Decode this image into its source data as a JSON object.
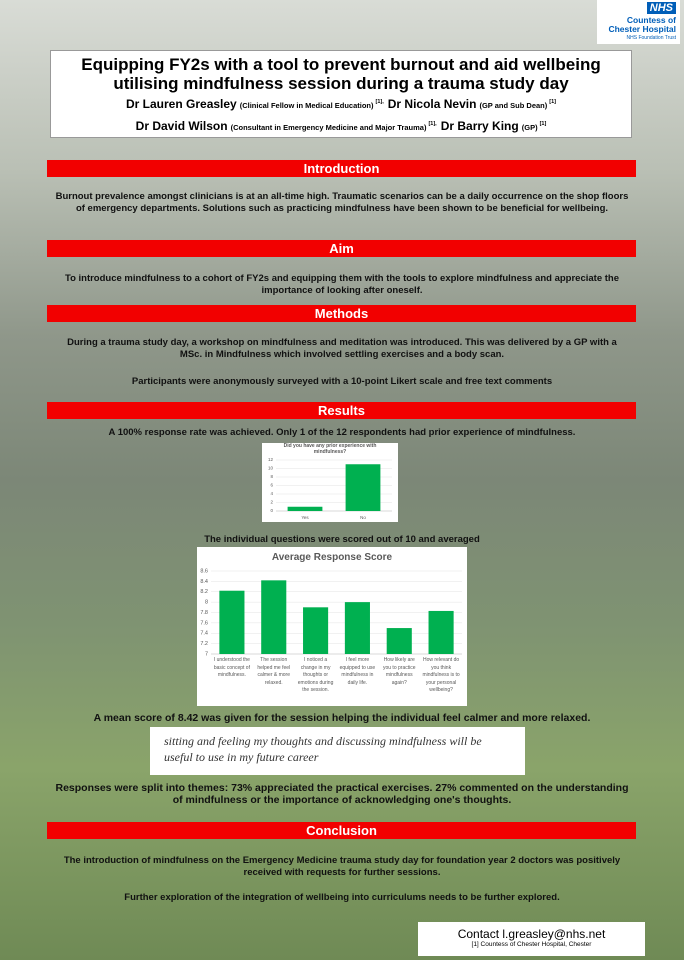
{
  "logo": {
    "mark": "NHS",
    "org": "Countess of Chester Hospital",
    "org_sub": "NHS Foundation Trust"
  },
  "header": {
    "title": "Equipping FY2s with a tool to prevent burnout and aid wellbeing utilising mindfulness session during a trauma study day",
    "authors": [
      {
        "name": "Dr Lauren Greasley",
        "role": "(Clinical Fellow in Medical Education)",
        "ref": "[1],"
      },
      {
        "name": "Dr Nicola Nevin",
        "role": "(GP and Sub Dean)",
        "ref": "[1]"
      },
      {
        "name": "Dr David Wilson",
        "role": "(Consultant in Emergency Medicine and Major Trauma)",
        "ref": "[1],"
      },
      {
        "name": "Dr Barry King",
        "role": "(GP)",
        "ref": "[1]"
      }
    ]
  },
  "introduction": {
    "heading": "Introduction",
    "body": "Burnout prevalence amongst clinicians is at an all-time high.  Traumatic scenarios can be a daily occurrence on the shop floors of emergency departments. Solutions such as practicing mindfulness have been shown to be beneficial for wellbeing."
  },
  "aim": {
    "heading": "Aim",
    "body": "To introduce mindfulness to a cohort of FY2s and equipping them with the tools to explore mindfulness and appreciate the importance of looking after oneself."
  },
  "methods": {
    "heading": "Methods",
    "paragraphs": [
      "During a trauma study day, a workshop on mindfulness and meditation was introduced. This was delivered by a GP with a MSc. in Mindfulness which involved settling exercises and a body scan.",
      "Participants were anonymously surveyed with a 10-point Likert scale and free text comments"
    ]
  },
  "results": {
    "heading": "Results",
    "intro": "A 100% response rate was achieved.  Only 1 of the 12 respondents had prior experience of mindfulness.",
    "chart2_caption": "The individual questions were scored out of 10 and averaged",
    "mean_note": "A mean score of 8.42 was given for the session helping the individual feel calmer and more relaxed.",
    "handwritten": "sitting and feeling my thoughts and discussing mindfulness will be useful to use in my future career",
    "themes": "Responses were split into themes: 73% appreciated the practical exercises. 27% commented on the understanding of mindfulness or the importance of acknowledging one's thoughts."
  },
  "conclusion": {
    "heading": "Conclusion",
    "paragraphs": [
      "The introduction of mindfulness on the Emergency Medicine trauma study day for foundation year 2 doctors was positively received with requests for further sessions.",
      "Further exploration of the integration of wellbeing into curriculums needs to be further explored."
    ]
  },
  "contact": {
    "email": "Contact l.greasley@nhs.net",
    "affiliation": "[1] Countess of Chester Hospital, Chester"
  },
  "chart_data": [
    {
      "type": "bar",
      "title": "Did you have any prior experience with mindfulness?",
      "categories": [
        "Yes",
        "No"
      ],
      "values": [
        1,
        11
      ],
      "color": "#00b050",
      "ylim": [
        0,
        12
      ],
      "yticks": [
        0,
        2,
        4,
        6,
        8,
        10,
        12
      ],
      "grid": true
    },
    {
      "type": "bar",
      "title": "Average Response Score",
      "categories": [
        "I understood the basic concept of mindfulness.",
        "The session helped me feel calmer & more relaxed.",
        "I noticed a change in my thoughts or emotions during the session.",
        "I feel more equipped to use mindfulness in daily life.",
        "How likely are you to practice mindfulness again?",
        "How relevant do you think mindfulness is to your personal wellbeing?"
      ],
      "values": [
        8.22,
        8.42,
        7.9,
        8.0,
        7.5,
        7.83
      ],
      "color": "#00b050",
      "ylim": [
        7,
        8.6
      ],
      "yticks": [
        7,
        7.2,
        7.4,
        7.6,
        7.8,
        8,
        8.2,
        8.4,
        8.6
      ],
      "grid": true
    }
  ]
}
